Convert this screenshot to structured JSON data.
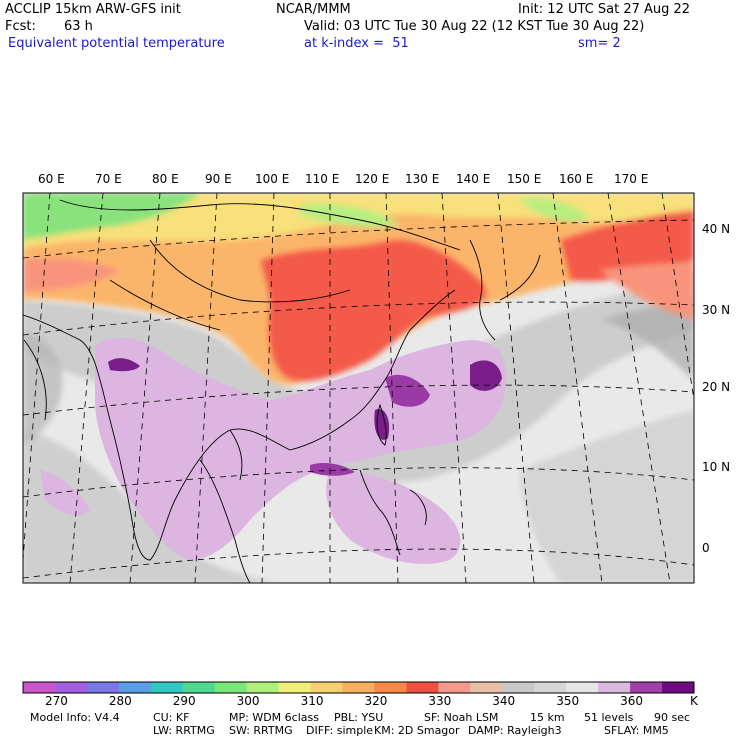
{
  "header": {
    "title": "ACCLIP 15km ARW-GFS init",
    "org": "NCAR/MMM",
    "init": "Init: 12 UTC Sat 27 Aug 22",
    "fcst_label": "Fcst:",
    "fcst_value": "63 h",
    "valid": "Valid: 03 UTC Tue 30 Aug 22 (12 KST Tue 30 Aug 22)",
    "field": "Equivalent potential temperature",
    "level": "at k-index =  51",
    "smooth": "sm= 2"
  },
  "map": {
    "lon_labels": [
      "60 E",
      "70 E",
      "80 E",
      "90 E",
      "100 E",
      "110 E",
      "120 E",
      "130 E",
      "140 E",
      "150 E",
      "160 E",
      "170 E"
    ],
    "lat_labels": [
      "40 N",
      "30 N",
      "20 N",
      "10 N",
      "0"
    ],
    "colors": {
      "dark_purple": "#7a1f8a",
      "light_purple": "#dcb6e0",
      "light_gray": "#e9e9e9",
      "mid_gray": "#c8c8c8",
      "dark_gray": "#a9a9a9",
      "red": "#f45a4a",
      "salmon": "#f9947c",
      "orange": "#fbb56a",
      "yellow": "#f8e07a",
      "light_green": "#b8ee80",
      "green": "#8ae27c"
    }
  },
  "colorbar": {
    "labels": [
      "270",
      "280",
      "290",
      "300",
      "310",
      "320",
      "330",
      "340",
      "350",
      "360"
    ],
    "unit": "K",
    "colors": [
      "#cc55cc",
      "#a060e0",
      "#7a78e6",
      "#5a9ee8",
      "#30c8c0",
      "#50d890",
      "#7ae878",
      "#b0f07a",
      "#f0f07a",
      "#f8d070",
      "#f8b060",
      "#f88848",
      "#f05040",
      "#f49a8c",
      "#e8c0a8",
      "#c8c8c8",
      "#d6d6d6",
      "#e6e6e6",
      "#dcb8e0",
      "#a040a8",
      "#700a80"
    ]
  },
  "footer": {
    "line1": [
      "Model Info: V4.4",
      "CU: KF",
      "MP: WDM 6class",
      "PBL: YSU",
      "SF: Noah LSM",
      "15 km",
      "51 levels",
      "90 sec"
    ],
    "line2": [
      "LW: RRTMG",
      "SW: RRTMG",
      "DIFF: simple",
      "KM: 2D Smagor",
      "DAMP: Rayleigh3",
      "SFLAY: MM5"
    ]
  }
}
